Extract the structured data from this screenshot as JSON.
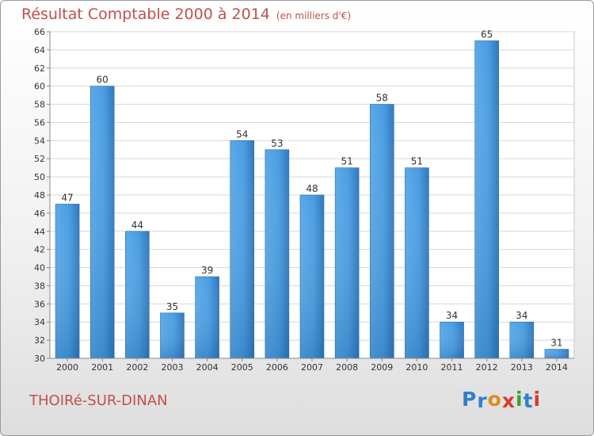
{
  "header": {
    "title": "Résultat Comptable 2000 à 2014",
    "subtitle": "(en milliers d'€)"
  },
  "footer": {
    "commune": "THOIRé-SUR-DINAN",
    "brand": {
      "letters": [
        "P",
        "r",
        "o",
        "x",
        "i",
        "t",
        "i"
      ],
      "colors": [
        "#2f7fd1",
        "#2f7fd1",
        "#e08a1e",
        "#d63a2e",
        "#3aa13a",
        "#2f7fd1",
        "#d63a2e"
      ]
    }
  },
  "chart_data": {
    "type": "bar",
    "title": "Résultat Comptable 2000 à 2014",
    "subtitle": "(en milliers d'€)",
    "categories": [
      "2000",
      "2001",
      "2002",
      "2003",
      "2004",
      "2005",
      "2006",
      "2007",
      "2008",
      "2009",
      "2010",
      "2011",
      "2012",
      "2013",
      "2014"
    ],
    "values": [
      47,
      60,
      44,
      35,
      39,
      54,
      53,
      48,
      51,
      58,
      51,
      34,
      65,
      34,
      31
    ],
    "ylim": [
      30,
      66
    ],
    "yticks": [
      30,
      32,
      34,
      36,
      38,
      40,
      42,
      44,
      46,
      48,
      50,
      52,
      54,
      56,
      58,
      60,
      62,
      64,
      66
    ],
    "grid": true,
    "bar_color": "#3d8fd6"
  }
}
